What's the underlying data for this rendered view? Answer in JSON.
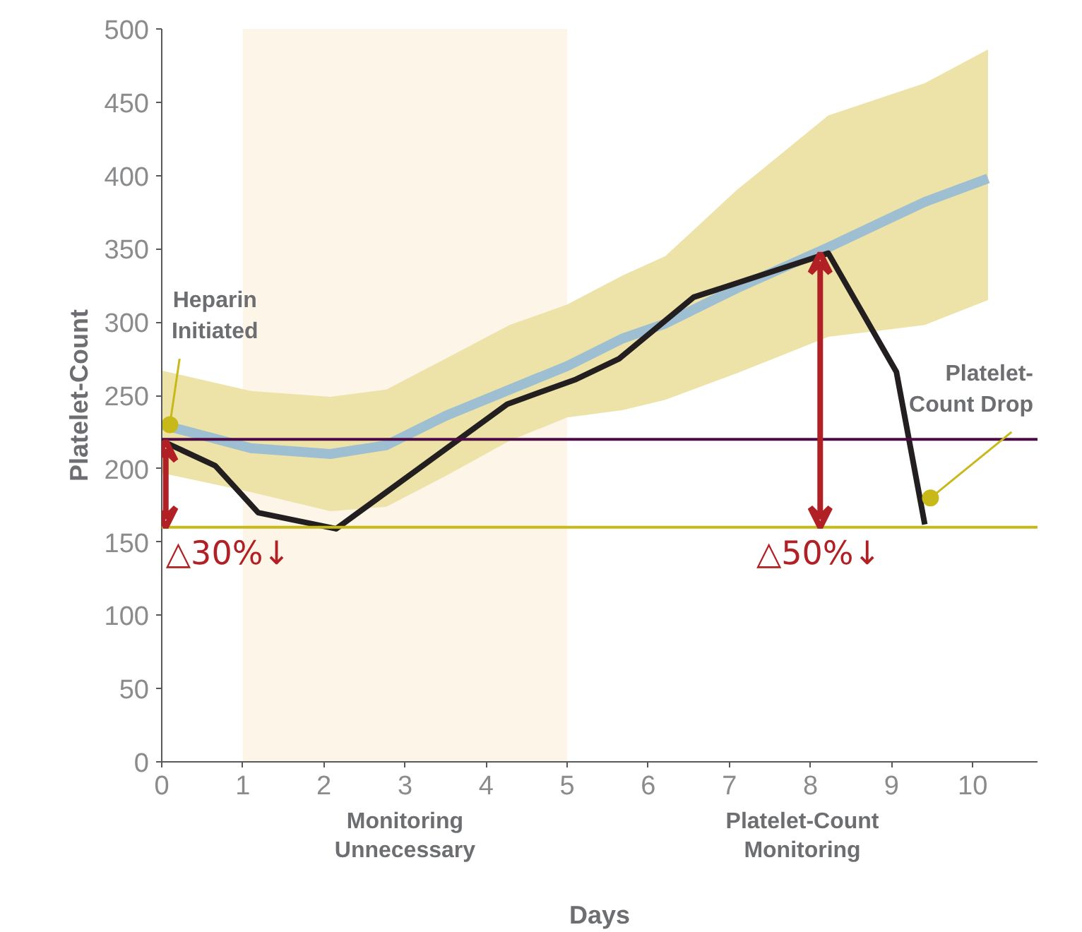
{
  "chart_data": {
    "type": "line",
    "xlabel": "Days",
    "ylabel": "Platelet-Count",
    "xlim": [
      0,
      10.8
    ],
    "ylim": [
      0,
      500
    ],
    "xticks": [
      0,
      1,
      2,
      3,
      4,
      5,
      6,
      7,
      8,
      9,
      10
    ],
    "yticks": [
      0,
      50,
      100,
      150,
      200,
      250,
      300,
      350,
      400,
      450,
      500
    ],
    "grid": false,
    "marker": "none",
    "line_style": "solid",
    "series": [
      {
        "color": "#9dbfd1",
        "x": [
          0,
          1.1,
          2.08,
          2.77,
          3.5,
          4.29,
          5.0,
          5.69,
          6.21,
          7.09,
          8.22,
          9.41,
          10.19
        ],
        "values": [
          230,
          214,
          210,
          216,
          236,
          254,
          270,
          289,
          299,
          323,
          351,
          382,
          398
        ],
        "lower": [
          197,
          184,
          171,
          174,
          195,
          219,
          235,
          240,
          247,
          265,
          290,
          298,
          315
        ],
        "upper": [
          267,
          253,
          249,
          254,
          275,
          298,
          312,
          332,
          345,
          390,
          441,
          463,
          486
        ]
      },
      {
        "color": "#231f20",
        "x": [
          0,
          0.66,
          1.19,
          2.15,
          4.26,
          5.11,
          5.64,
          6.56,
          8.22,
          9.06,
          9.41
        ],
        "values": [
          219,
          202,
          170,
          159,
          244,
          261,
          275,
          317,
          347,
          266,
          162
        ]
      }
    ],
    "ref_lines": [
      {
        "axis": "y",
        "value": 220,
        "color": "#4d0a44"
      },
      {
        "axis": "y",
        "value": 160,
        "color": "#c8b91a"
      }
    ],
    "bands": [
      {
        "axis": "x",
        "from": 1,
        "to": 5,
        "label": "Monitoring\nUnnecessary",
        "color": "#fcf5e8"
      }
    ],
    "annotations": [
      {
        "text": "Heparin\nInitiated",
        "x": 0.1,
        "y": 230
      },
      {
        "text": "Platelet-\nCount Drop",
        "x": 9.48,
        "y": 180
      },
      {
        "text": "△30%↓",
        "x": 0.05,
        "y": 160
      },
      {
        "text": "△50%↓",
        "x": 8.1,
        "y": 160
      },
      "Platelet-Count\nMonitoring"
    ]
  }
}
